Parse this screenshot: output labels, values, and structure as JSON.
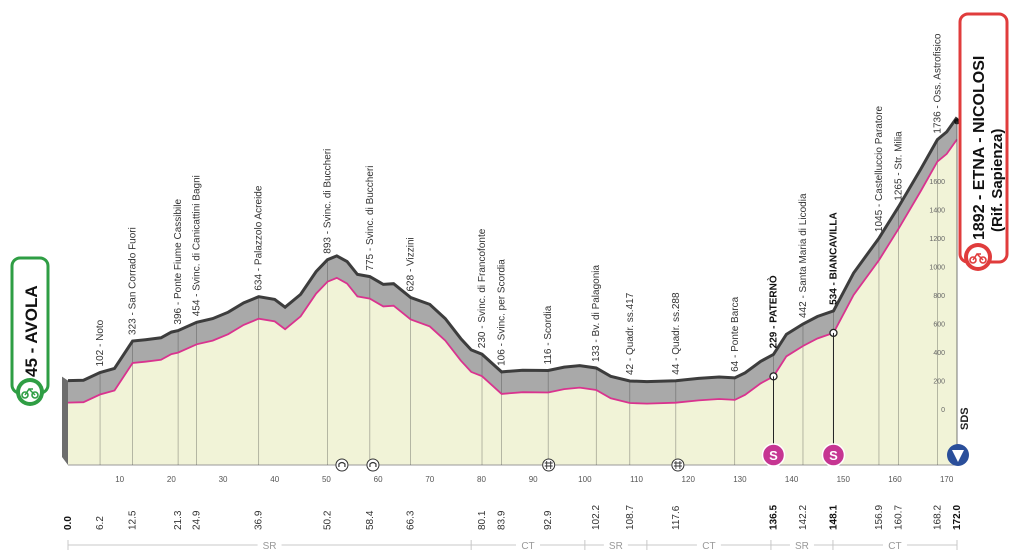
{
  "colors": {
    "terrain": "#f1f3d7",
    "ridge": "#a9a9a9",
    "ridge_dark": "#3d3d3d",
    "pink_line": "#d9338f",
    "pink_badge": "#c63592",
    "start_green": "#2f9e44",
    "finish_red": "#e03c3c",
    "sds_blue": "#2a4e9a"
  },
  "start": {
    "altitude": "45",
    "name": "AVOLA",
    "km": "0.0"
  },
  "finish": {
    "altitude": "1892",
    "name": "ETNA - NICOLOSI",
    "subtitle": "(Rif. Sapienza)",
    "km": "172.0"
  },
  "sds_label": "SDS",
  "chart_data": {
    "type": "area",
    "xlabel": "",
    "ylabel": "",
    "xlim": [
      0,
      172
    ],
    "ylim": [
      -250,
      2000
    ],
    "x_ticks": [
      10,
      20,
      30,
      40,
      50,
      60,
      70,
      80,
      90,
      100,
      110,
      120,
      130,
      140,
      150,
      160,
      170
    ],
    "y_ticks": [
      0,
      200,
      400,
      600,
      800,
      1000,
      1200,
      1400,
      1600
    ],
    "profile": [
      {
        "x": 0,
        "y": 45
      },
      {
        "x": 3,
        "y": 48
      },
      {
        "x": 6.2,
        "y": 102
      },
      {
        "x": 9,
        "y": 130
      },
      {
        "x": 12.5,
        "y": 323
      },
      {
        "x": 15,
        "y": 332
      },
      {
        "x": 18,
        "y": 345
      },
      {
        "x": 20,
        "y": 385
      },
      {
        "x": 21.3,
        "y": 396
      },
      {
        "x": 24.9,
        "y": 454
      },
      {
        "x": 28,
        "y": 480
      },
      {
        "x": 31,
        "y": 525
      },
      {
        "x": 34,
        "y": 590
      },
      {
        "x": 36.9,
        "y": 634
      },
      {
        "x": 40,
        "y": 615
      },
      {
        "x": 42,
        "y": 560
      },
      {
        "x": 45,
        "y": 650
      },
      {
        "x": 48,
        "y": 810
      },
      {
        "x": 50.2,
        "y": 893
      },
      {
        "x": 52,
        "y": 920
      },
      {
        "x": 54,
        "y": 880
      },
      {
        "x": 56,
        "y": 790
      },
      {
        "x": 58.4,
        "y": 775
      },
      {
        "x": 61,
        "y": 720
      },
      {
        "x": 63,
        "y": 725
      },
      {
        "x": 66.3,
        "y": 628
      },
      {
        "x": 70,
        "y": 580
      },
      {
        "x": 73,
        "y": 480
      },
      {
        "x": 76,
        "y": 340
      },
      {
        "x": 78,
        "y": 260
      },
      {
        "x": 80.1,
        "y": 230
      },
      {
        "x": 83.9,
        "y": 106
      },
      {
        "x": 88,
        "y": 118
      },
      {
        "x": 92.9,
        "y": 116
      },
      {
        "x": 96,
        "y": 140
      },
      {
        "x": 99,
        "y": 150
      },
      {
        "x": 102.2,
        "y": 133
      },
      {
        "x": 105,
        "y": 75
      },
      {
        "x": 108.7,
        "y": 42
      },
      {
        "x": 112,
        "y": 38
      },
      {
        "x": 117.6,
        "y": 44
      },
      {
        "x": 122,
        "y": 60
      },
      {
        "x": 126,
        "y": 70
      },
      {
        "x": 129,
        "y": 64
      },
      {
        "x": 131,
        "y": 100
      },
      {
        "x": 134,
        "y": 180
      },
      {
        "x": 136.5,
        "y": 229
      },
      {
        "x": 139,
        "y": 370
      },
      {
        "x": 142.2,
        "y": 442
      },
      {
        "x": 145,
        "y": 495
      },
      {
        "x": 148.1,
        "y": 534
      },
      {
        "x": 152,
        "y": 800
      },
      {
        "x": 156.9,
        "y": 1045
      },
      {
        "x": 160.7,
        "y": 1265
      },
      {
        "x": 165,
        "y": 1530
      },
      {
        "x": 168.2,
        "y": 1736
      },
      {
        "x": 170,
        "y": 1790
      },
      {
        "x": 172,
        "y": 1892
      }
    ],
    "checkpoints": [
      {
        "km": 6.2,
        "alt": 102,
        "label": "102 - Noto",
        "bold": false
      },
      {
        "km": 12.5,
        "alt": 323,
        "label": "323 - San Corrado Fuori",
        "bold": false
      },
      {
        "km": 21.3,
        "alt": 396,
        "label": "396 - Ponte Fiume Cassibile",
        "bold": false
      },
      {
        "km": 24.9,
        "alt": 454,
        "label": "454 - Svinc. di Canicattini Bagni",
        "bold": false
      },
      {
        "km": 36.9,
        "alt": 634,
        "label": "634 - Palazzolo Acreide",
        "bold": false
      },
      {
        "km": 50.2,
        "alt": 893,
        "label": "893 - Svinc. di Buccheri",
        "bold": false
      },
      {
        "km": 58.4,
        "alt": 775,
        "label": "775 - Svinc. di Buccheri",
        "bold": false
      },
      {
        "km": 66.3,
        "alt": 628,
        "label": "628 - Vizzini",
        "bold": false
      },
      {
        "km": 80.1,
        "alt": 230,
        "label": "230 - Svinc. di Francofonte",
        "bold": false
      },
      {
        "km": 83.9,
        "alt": 106,
        "label": "106 - Svinc. per Scordia",
        "bold": false
      },
      {
        "km": 92.9,
        "alt": 116,
        "label": "116 - Scordia",
        "bold": false
      },
      {
        "km": 102.2,
        "alt": 133,
        "label": "133 - Bv. di Palagonia",
        "bold": false
      },
      {
        "km": 108.7,
        "alt": 42,
        "label": "42 - Quadr. ss.417",
        "bold": false
      },
      {
        "km": 117.6,
        "alt": 44,
        "label": "44 - Quadr. ss.288",
        "bold": false
      },
      {
        "km": 129,
        "alt": 64,
        "label": "64 - Ponte Barca",
        "bold": false
      },
      {
        "km": 136.5,
        "alt": 229,
        "label": "229 - PATERNÒ",
        "bold": true
      },
      {
        "km": 142.2,
        "alt": 442,
        "label": "442 - Santa Maria di Licodia",
        "bold": false
      },
      {
        "km": 148.1,
        "alt": 534,
        "label": "534 - BIANCAVILLA",
        "bold": true
      },
      {
        "km": 156.9,
        "alt": 1045,
        "label": "1045 - Castelluccio Paratore",
        "bold": false
      },
      {
        "km": 160.7,
        "alt": 1265,
        "label": "1265 - Str. Milia",
        "bold": false
      },
      {
        "km": 168.2,
        "alt": 1736,
        "label": "1736 - Oss. Astrofisico",
        "bold": false
      }
    ],
    "distance_labels": [
      {
        "km": 0,
        "label": "0.0",
        "bold": true
      },
      {
        "km": 6.2,
        "label": "6.2",
        "bold": false
      },
      {
        "km": 12.5,
        "label": "12.5",
        "bold": false
      },
      {
        "km": 21.3,
        "label": "21.3",
        "bold": false
      },
      {
        "km": 24.9,
        "label": "24.9",
        "bold": false
      },
      {
        "km": 36.9,
        "label": "36.9",
        "bold": false
      },
      {
        "km": 50.2,
        "label": "50.2",
        "bold": false
      },
      {
        "km": 58.4,
        "label": "58.4",
        "bold": false
      },
      {
        "km": 66.3,
        "label": "66.3",
        "bold": false
      },
      {
        "km": 80.1,
        "label": "80.1",
        "bold": false
      },
      {
        "km": 83.9,
        "label": "83.9",
        "bold": false
      },
      {
        "km": 92.9,
        "label": "92.9",
        "bold": false
      },
      {
        "km": 102.2,
        "label": "102.2",
        "bold": false
      },
      {
        "km": 108.7,
        "label": "108.7",
        "bold": false
      },
      {
        "km": 117.6,
        "label": "117.6",
        "bold": false
      },
      {
        "km": 136.5,
        "label": "136.5",
        "bold": true
      },
      {
        "km": 142.2,
        "label": "142.2",
        "bold": false
      },
      {
        "km": 148.1,
        "label": "148.1",
        "bold": true
      },
      {
        "km": 156.9,
        "label": "156.9",
        "bold": false
      },
      {
        "km": 160.7,
        "label": "160.7",
        "bold": false
      },
      {
        "km": 168.2,
        "label": "168.2",
        "bold": false
      },
      {
        "km": 172,
        "label": "172.0",
        "bold": true
      }
    ],
    "provinces": [
      {
        "label": "SR",
        "from": 0,
        "to": 78
      },
      {
        "label": "CT",
        "from": 78,
        "to": 100
      },
      {
        "label": "SR",
        "from": 100,
        "to": 112
      },
      {
        "label": "CT",
        "from": 112,
        "to": 136
      },
      {
        "label": "SR",
        "from": 136,
        "to": 148
      },
      {
        "label": "CT",
        "from": 148,
        "to": 172
      }
    ],
    "sprints": [
      {
        "km": 136.5,
        "alt": 229,
        "label": "S"
      },
      {
        "km": 148.1,
        "alt": 534,
        "label": "S"
      }
    ],
    "tunnels": [
      53,
      59
    ],
    "rail_crossings": [
      93,
      118
    ]
  }
}
